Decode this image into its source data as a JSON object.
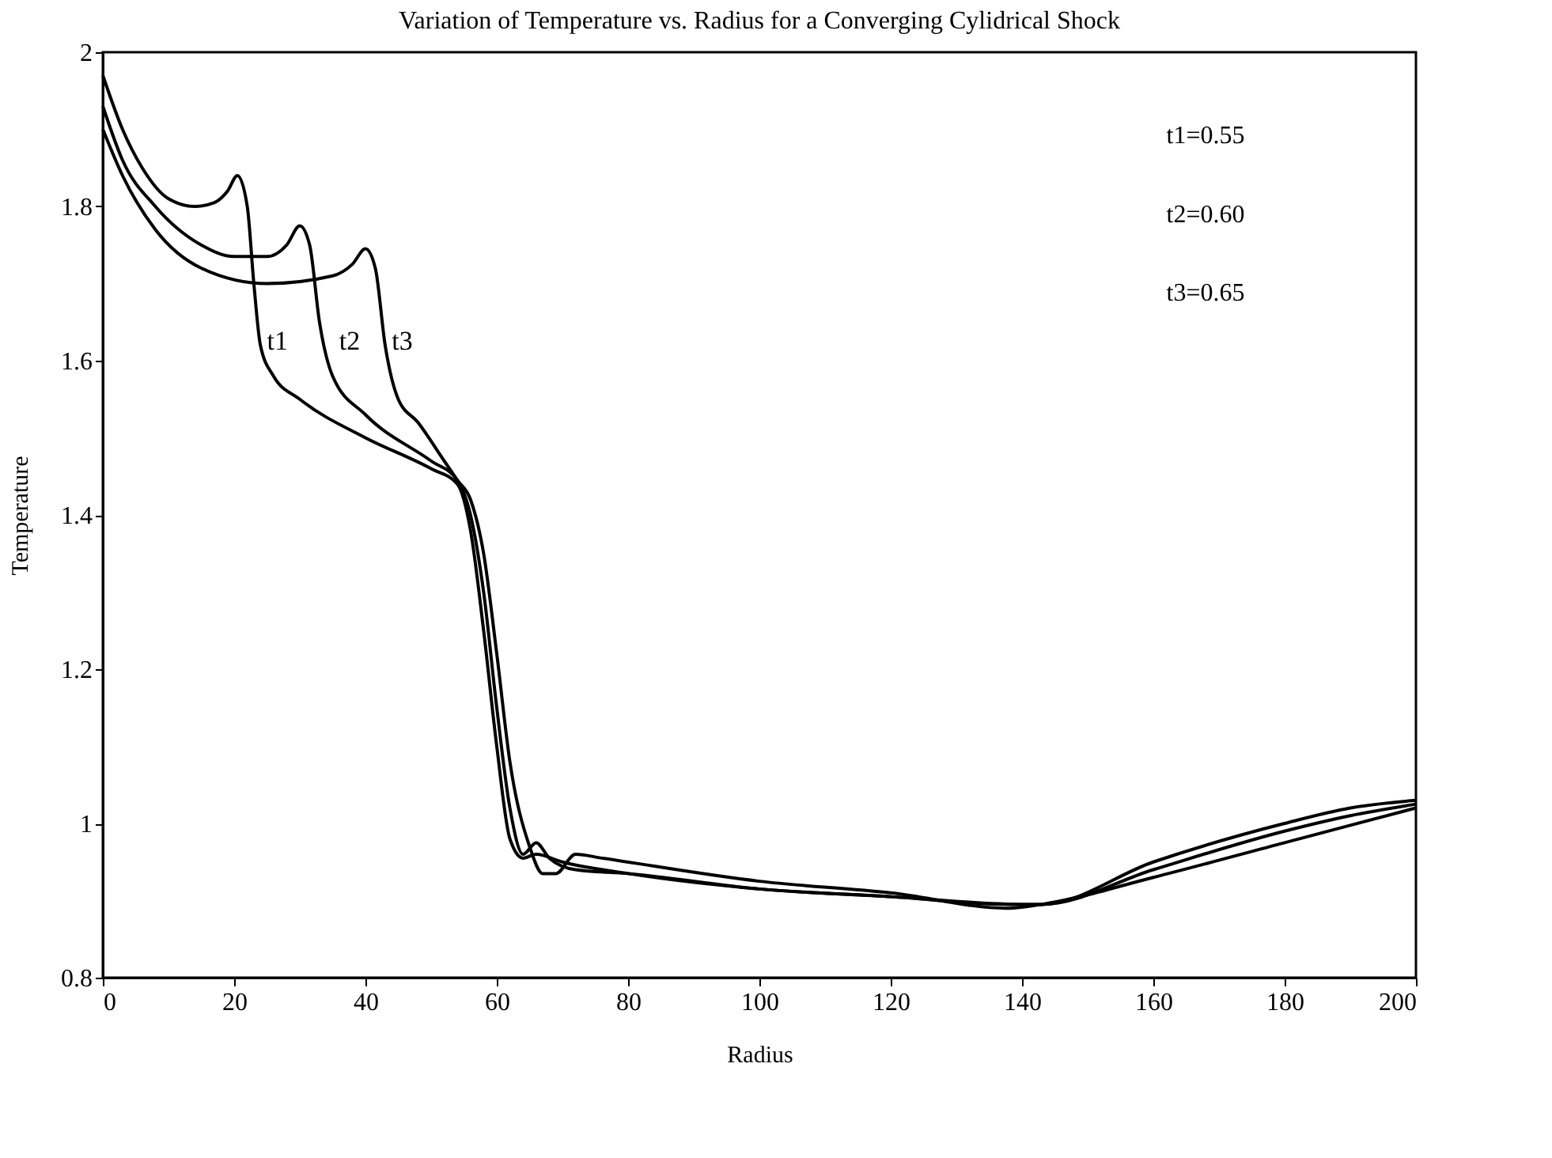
{
  "chart_data": {
    "type": "line",
    "title": "Variation of Temperature vs. Radius for a Converging Cylidrical Shock",
    "xlabel": "Radius",
    "ylabel": "Temperature",
    "xlim": [
      0,
      200
    ],
    "ylim": [
      0.8,
      2
    ],
    "xticks": [
      0,
      20,
      40,
      60,
      80,
      100,
      120,
      140,
      160,
      180,
      200
    ],
    "yticks": [
      0.8,
      1,
      1.2,
      1.4,
      1.6,
      1.8,
      2
    ],
    "grid": false,
    "legend": false,
    "marker": "none",
    "line_style": "solid",
    "annotations": [
      "t1=0.55",
      "t2=0.60",
      "t3=0.65"
    ],
    "series": [
      {
        "name": "t1",
        "color": "#000000",
        "x": [
          0,
          3,
          6,
          10,
          14,
          17,
          19,
          20.5,
          22,
          23,
          24,
          26,
          30,
          40,
          50,
          54,
          56,
          58,
          60,
          62,
          64,
          66,
          70,
          80,
          100,
          120,
          140,
          143,
          160,
          180,
          190,
          200
        ],
        "values": [
          1.97,
          1.9,
          1.85,
          1.81,
          1.8,
          1.805,
          1.82,
          1.84,
          1.8,
          1.7,
          1.62,
          1.58,
          1.55,
          1.5,
          1.46,
          1.44,
          1.38,
          1.25,
          1.1,
          0.98,
          0.955,
          0.96,
          0.95,
          0.935,
          0.915,
          0.905,
          0.895,
          0.895,
          0.95,
          1,
          1.02,
          1.03
        ]
      },
      {
        "name": "t2",
        "color": "#000000",
        "x": [
          0,
          3,
          8,
          15,
          20,
          25,
          28,
          30,
          31.5,
          33,
          35,
          40,
          50,
          54,
          56,
          58,
          60,
          62,
          64,
          66,
          68,
          72,
          80,
          100,
          120,
          138,
          143,
          160,
          180,
          190,
          200
        ],
        "values": [
          1.93,
          1.86,
          1.8,
          1.75,
          1.735,
          1.735,
          1.75,
          1.775,
          1.75,
          1.65,
          1.58,
          1.53,
          1.47,
          1.445,
          1.4,
          1.3,
          1.15,
          1.02,
          0.96,
          0.975,
          0.955,
          0.94,
          0.935,
          0.915,
          0.905,
          0.895,
          0.895,
          0.94,
          0.99,
          1.01,
          1.025
        ]
      },
      {
        "name": "t3",
        "color": "#000000",
        "x": [
          0,
          3,
          8,
          15,
          25,
          35,
          38,
          40,
          41.5,
          43,
          45,
          48,
          52,
          54,
          56,
          58,
          60,
          62,
          65,
          67,
          69,
          72,
          76,
          100,
          120,
          138,
          143,
          160,
          180,
          200
        ],
        "values": [
          1.9,
          1.84,
          1.77,
          1.72,
          1.7,
          1.71,
          1.725,
          1.745,
          1.72,
          1.62,
          1.55,
          1.52,
          1.47,
          1.445,
          1.42,
          1.35,
          1.22,
          1.08,
          0.97,
          0.935,
          0.935,
          0.96,
          0.955,
          0.925,
          0.91,
          0.89,
          0.895,
          0.93,
          0.975,
          1.02
        ]
      }
    ]
  }
}
